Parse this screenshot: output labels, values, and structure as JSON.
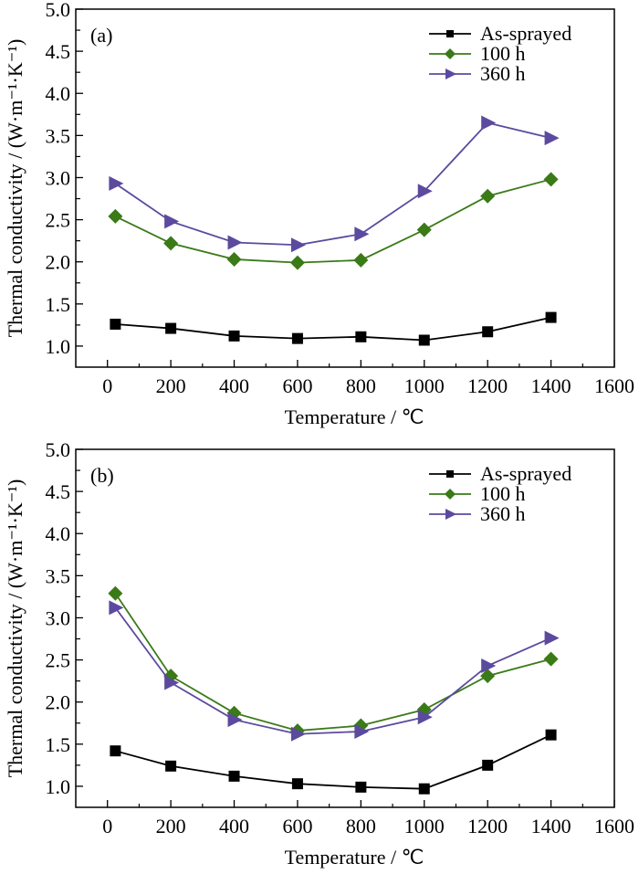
{
  "chart_data": [
    {
      "type": "line",
      "panel_label": "(a)",
      "xlabel": "Temperature / ℃",
      "ylabel": "Thermal conductivity / (W·m⁻¹·K⁻¹)",
      "xlim": [
        -100,
        1600
      ],
      "ylim": [
        0.75,
        5.0
      ],
      "x_ticks": [
        0,
        200,
        400,
        600,
        800,
        1000,
        1200,
        1400,
        1600
      ],
      "x_tick_labels": [
        "0",
        "200",
        "400",
        "600",
        "800",
        "1000",
        "1200",
        "1400",
        "1600"
      ],
      "y_ticks": [
        1.0,
        1.5,
        2.0,
        2.5,
        3.0,
        3.5,
        4.0,
        4.5,
        5.0
      ],
      "y_tick_labels": [
        "1.0",
        "1.5",
        "2.0",
        "2.5",
        "3.0",
        "3.5",
        "4.0",
        "4.5",
        "5.0"
      ],
      "grid": false,
      "legend_position": "top-right",
      "x": [
        25,
        200,
        400,
        600,
        800,
        1000,
        1200,
        1400
      ],
      "series": [
        {
          "name": "As-sprayed",
          "color": "#000000",
          "marker": "square",
          "values": [
            1.26,
            1.21,
            1.12,
            1.09,
            1.11,
            1.07,
            1.17,
            1.34
          ]
        },
        {
          "name": "100 h",
          "color": "#3a7a17",
          "marker": "diamond",
          "values": [
            2.54,
            2.22,
            2.03,
            1.99,
            2.02,
            2.38,
            2.78,
            2.98
          ]
        },
        {
          "name": "360 h",
          "color": "#5b4a9e",
          "marker": "triangle-right",
          "values": [
            2.93,
            2.48,
            2.23,
            2.2,
            2.33,
            2.84,
            3.65,
            3.47
          ]
        }
      ]
    },
    {
      "type": "line",
      "panel_label": "(b)",
      "xlabel": "Temperature / ℃",
      "ylabel": "Thermal conductivity / (W·m⁻¹·K⁻¹)",
      "xlim": [
        -100,
        1600
      ],
      "ylim": [
        0.75,
        5.0
      ],
      "x_ticks": [
        0,
        200,
        400,
        600,
        800,
        1000,
        1200,
        1400,
        1600
      ],
      "x_tick_labels": [
        "0",
        "200",
        "400",
        "600",
        "800",
        "1000",
        "1200",
        "1400",
        "1600"
      ],
      "y_ticks": [
        1.0,
        1.5,
        2.0,
        2.5,
        3.0,
        3.5,
        4.0,
        4.5,
        5.0
      ],
      "y_tick_labels": [
        "1.0",
        "1.5",
        "2.0",
        "2.5",
        "3.0",
        "3.5",
        "4.0",
        "4.5",
        "5.0"
      ],
      "grid": false,
      "legend_position": "top-right",
      "x": [
        25,
        200,
        400,
        600,
        800,
        1000,
        1200,
        1400
      ],
      "series": [
        {
          "name": "As-sprayed",
          "color": "#000000",
          "marker": "square",
          "values": [
            1.42,
            1.24,
            1.12,
            1.03,
            0.99,
            0.97,
            1.25,
            1.61
          ]
        },
        {
          "name": "100 h",
          "color": "#3a7a17",
          "marker": "diamond",
          "values": [
            3.29,
            2.31,
            1.87,
            1.66,
            1.72,
            1.91,
            2.31,
            2.51
          ]
        },
        {
          "name": "360 h",
          "color": "#5b4a9e",
          "marker": "triangle-right",
          "values": [
            3.12,
            2.23,
            1.79,
            1.62,
            1.65,
            1.82,
            2.43,
            2.76
          ]
        }
      ]
    }
  ]
}
